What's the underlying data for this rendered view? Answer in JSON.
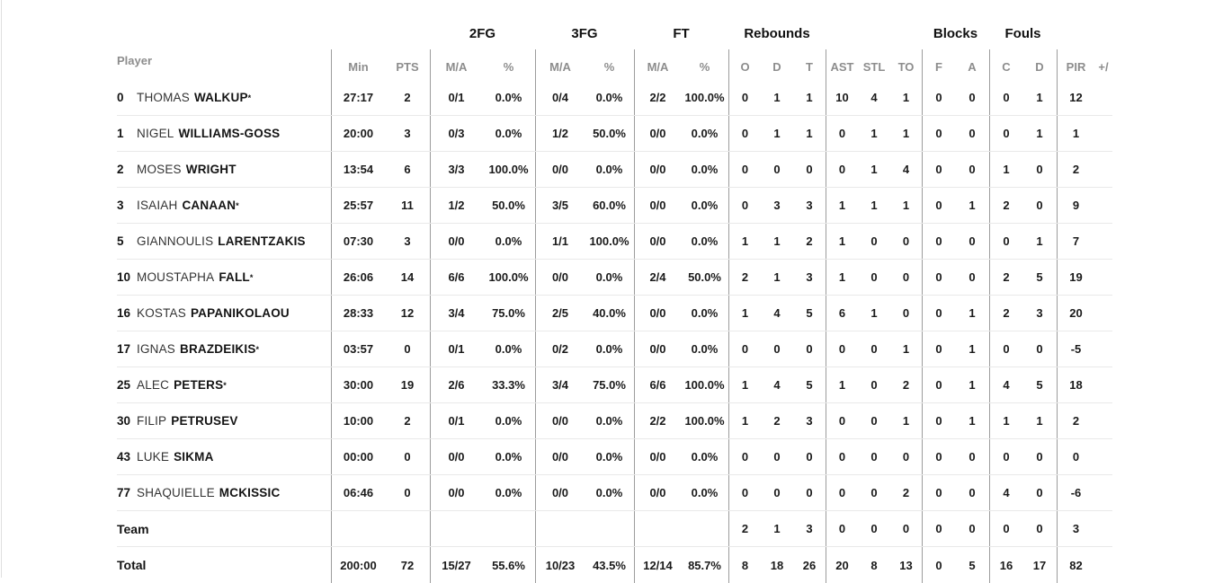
{
  "colors": {
    "background": "#ffffff",
    "text": "#1a1a1a",
    "muted_header": "#8d8d8d",
    "column_line": "#9c9c9c",
    "row_line": "#e9e9e9"
  },
  "table": {
    "player_label": "Player",
    "group_headers": {
      "fg2": "2FG",
      "fg3": "3FG",
      "ft": "FT",
      "rebounds": "Rebounds",
      "blocks": "Blocks",
      "fouls": "Fouls"
    },
    "column_headers": [
      "Min",
      "PTS",
      "M/A",
      "%",
      "M/A",
      "%",
      "M/A",
      "%",
      "O",
      "D",
      "T",
      "AST",
      "STL",
      "TO",
      "F",
      "A",
      "C",
      "D",
      "PIR",
      "+/"
    ],
    "column_keys": [
      "min",
      "pts",
      "2fg-ma",
      "2fg-pct",
      "3fg-ma",
      "3fg-pct",
      "ft-ma",
      "ft-pct",
      "reb-o",
      "reb-d",
      "reb-t",
      "ast",
      "stl",
      "to",
      "blk-favour",
      "blk-against",
      "foul-committed",
      "foul-drawn",
      "pir",
      "plus-minus"
    ],
    "rows": [
      {
        "type": "player",
        "number": "0",
        "first": "THOMAS",
        "last": "WALKUP",
        "starter": true,
        "cells": [
          "27:17",
          "2",
          "0/1",
          "0.0%",
          "0/4",
          "0.0%",
          "2/2",
          "100.0%",
          "0",
          "1",
          "1",
          "10",
          "4",
          "1",
          "0",
          "0",
          "0",
          "1",
          "12",
          ""
        ]
      },
      {
        "type": "player",
        "number": "1",
        "first": "NIGEL",
        "last": "WILLIAMS-GOSS",
        "starter": false,
        "cells": [
          "20:00",
          "3",
          "0/3",
          "0.0%",
          "1/2",
          "50.0%",
          "0/0",
          "0.0%",
          "0",
          "1",
          "1",
          "0",
          "1",
          "1",
          "0",
          "0",
          "0",
          "1",
          "1",
          ""
        ]
      },
      {
        "type": "player",
        "number": "2",
        "first": "MOSES",
        "last": "WRIGHT",
        "starter": false,
        "cells": [
          "13:54",
          "6",
          "3/3",
          "100.0%",
          "0/0",
          "0.0%",
          "0/0",
          "0.0%",
          "0",
          "0",
          "0",
          "0",
          "1",
          "4",
          "0",
          "0",
          "1",
          "0",
          "2",
          ""
        ]
      },
      {
        "type": "player",
        "number": "3",
        "first": "ISAIAH",
        "last": "CANAAN",
        "starter": true,
        "cells": [
          "25:57",
          "11",
          "1/2",
          "50.0%",
          "3/5",
          "60.0%",
          "0/0",
          "0.0%",
          "0",
          "3",
          "3",
          "1",
          "1",
          "1",
          "0",
          "1",
          "2",
          "0",
          "9",
          ""
        ]
      },
      {
        "type": "player",
        "number": "5",
        "first": "GIANNOULIS",
        "last": "LARENTZAKIS",
        "starter": false,
        "cells": [
          "07:30",
          "3",
          "0/0",
          "0.0%",
          "1/1",
          "100.0%",
          "0/0",
          "0.0%",
          "1",
          "1",
          "2",
          "1",
          "0",
          "0",
          "0",
          "0",
          "0",
          "1",
          "7",
          ""
        ]
      },
      {
        "type": "player",
        "number": "10",
        "first": "MOUSTAPHA",
        "last": "FALL",
        "starter": true,
        "cells": [
          "26:06",
          "14",
          "6/6",
          "100.0%",
          "0/0",
          "0.0%",
          "2/4",
          "50.0%",
          "2",
          "1",
          "3",
          "1",
          "0",
          "0",
          "0",
          "0",
          "2",
          "5",
          "19",
          ""
        ]
      },
      {
        "type": "player",
        "number": "16",
        "first": "KOSTAS",
        "last": "PAPANIKOLAOU",
        "starter": false,
        "cells": [
          "28:33",
          "12",
          "3/4",
          "75.0%",
          "2/5",
          "40.0%",
          "0/0",
          "0.0%",
          "1",
          "4",
          "5",
          "6",
          "1",
          "0",
          "0",
          "1",
          "2",
          "3",
          "20",
          ""
        ]
      },
      {
        "type": "player",
        "number": "17",
        "first": "IGNAS",
        "last": "BRAZDEIKIS",
        "starter": true,
        "cells": [
          "03:57",
          "0",
          "0/1",
          "0.0%",
          "0/2",
          "0.0%",
          "0/0",
          "0.0%",
          "0",
          "0",
          "0",
          "0",
          "0",
          "1",
          "0",
          "1",
          "0",
          "0",
          "-5",
          ""
        ]
      },
      {
        "type": "player",
        "number": "25",
        "first": "ALEC",
        "last": "PETERS",
        "starter": true,
        "cells": [
          "30:00",
          "19",
          "2/6",
          "33.3%",
          "3/4",
          "75.0%",
          "6/6",
          "100.0%",
          "1",
          "4",
          "5",
          "1",
          "0",
          "2",
          "0",
          "1",
          "4",
          "5",
          "18",
          ""
        ]
      },
      {
        "type": "player",
        "number": "30",
        "first": "FILIP",
        "last": "PETRUSEV",
        "starter": false,
        "cells": [
          "10:00",
          "2",
          "0/1",
          "0.0%",
          "0/0",
          "0.0%",
          "2/2",
          "100.0%",
          "1",
          "2",
          "3",
          "0",
          "0",
          "1",
          "0",
          "1",
          "1",
          "1",
          "2",
          ""
        ]
      },
      {
        "type": "player",
        "number": "43",
        "first": "LUKE",
        "last": "SIKMA",
        "starter": false,
        "cells": [
          "00:00",
          "0",
          "0/0",
          "0.0%",
          "0/0",
          "0.0%",
          "0/0",
          "0.0%",
          "0",
          "0",
          "0",
          "0",
          "0",
          "0",
          "0",
          "0",
          "0",
          "0",
          "0",
          ""
        ]
      },
      {
        "type": "player",
        "number": "77",
        "first": "SHAQUIELLE",
        "last": "MCKISSIC",
        "starter": false,
        "cells": [
          "06:46",
          "0",
          "0/0",
          "0.0%",
          "0/0",
          "0.0%",
          "0/0",
          "0.0%",
          "0",
          "0",
          "0",
          "0",
          "0",
          "2",
          "0",
          "0",
          "4",
          "0",
          "-6",
          ""
        ]
      },
      {
        "type": "summary",
        "label": "Team",
        "cells": [
          "",
          "",
          "",
          "",
          "",
          "",
          "",
          "",
          "2",
          "1",
          "3",
          "0",
          "0",
          "0",
          "0",
          "0",
          "0",
          "0",
          "3",
          ""
        ]
      },
      {
        "type": "summary",
        "label": "Total",
        "cells": [
          "200:00",
          "72",
          "15/27",
          "55.6%",
          "10/23",
          "43.5%",
          "12/14",
          "85.7%",
          "8",
          "18",
          "26",
          "20",
          "8",
          "13",
          "0",
          "5",
          "16",
          "17",
          "82",
          ""
        ]
      }
    ]
  }
}
